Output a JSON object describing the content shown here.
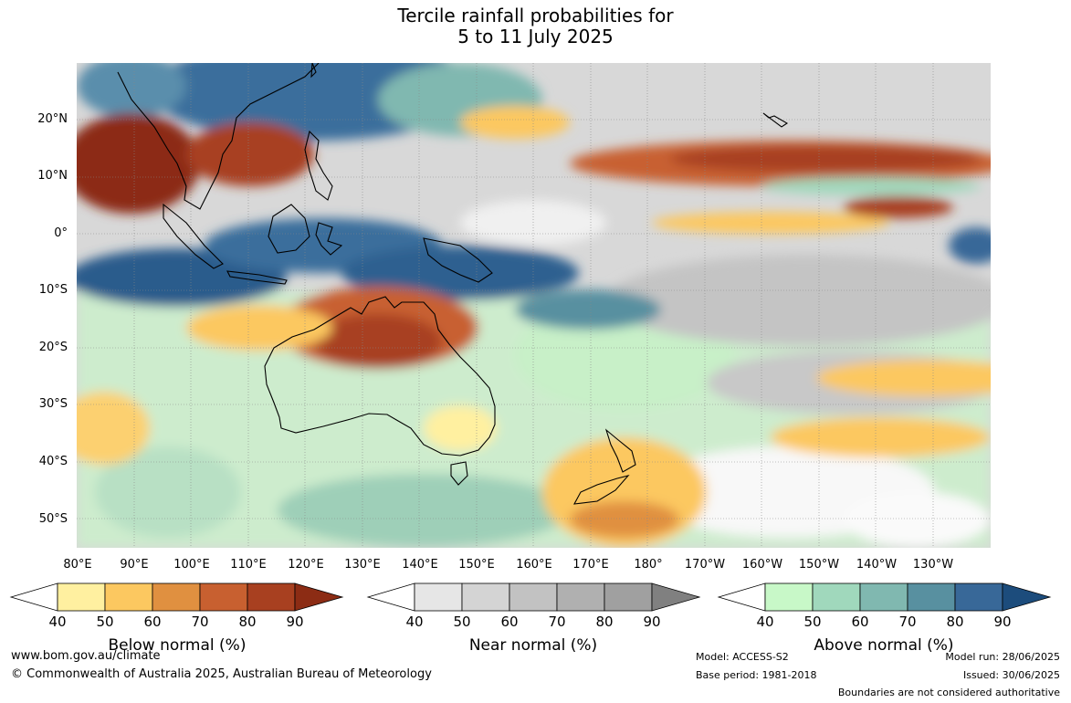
{
  "title": {
    "line1": "Tercile rainfall probabilities for",
    "line2": "5 to 11 July 2025"
  },
  "map": {
    "lat_labels": [
      "20°N",
      "10°N",
      "0°",
      "10°S",
      "20°S",
      "30°S",
      "40°S",
      "50°S"
    ],
    "lon_labels": [
      "80°E",
      "90°E",
      "100°E",
      "110°E",
      "120°E",
      "130°E",
      "140°E",
      "150°E",
      "160°E",
      "170°E",
      "180°",
      "170°W",
      "160°W",
      "150°W",
      "140°W",
      "130°W"
    ]
  },
  "legends": {
    "tick_labels": [
      "40",
      "50",
      "60",
      "70",
      "80",
      "90"
    ],
    "below": {
      "title": "Below normal (%)",
      "colors": [
        "#fff0a0",
        "#fcc860",
        "#e09040",
        "#c86030",
        "#a84020",
        "#8c2c14"
      ]
    },
    "near": {
      "title": "Near normal (%)",
      "colors": [
        "#e6e6e6",
        "#d4d4d4",
        "#c2c2c2",
        "#b0b0b0",
        "#a0a0a0",
        "#808080"
      ]
    },
    "above": {
      "title": "Above normal (%)",
      "colors": [
        "#c8f8c8",
        "#a0d8bc",
        "#80b8b0",
        "#5890a0",
        "#386898",
        "#1c4c7c"
      ]
    }
  },
  "footer": {
    "url": "www.bom.gov.au/climate",
    "copyright": "© Commonwealth of Australia 2025, Australian Bureau of Meteorology",
    "model": "Model: ACCESS-S2",
    "base_period": "Base period: 1981-2018",
    "model_run": "Model run: 28/06/2025",
    "issued": "Issued: 30/06/2025",
    "disclaimer": "Boundaries are not considered authoritative"
  }
}
